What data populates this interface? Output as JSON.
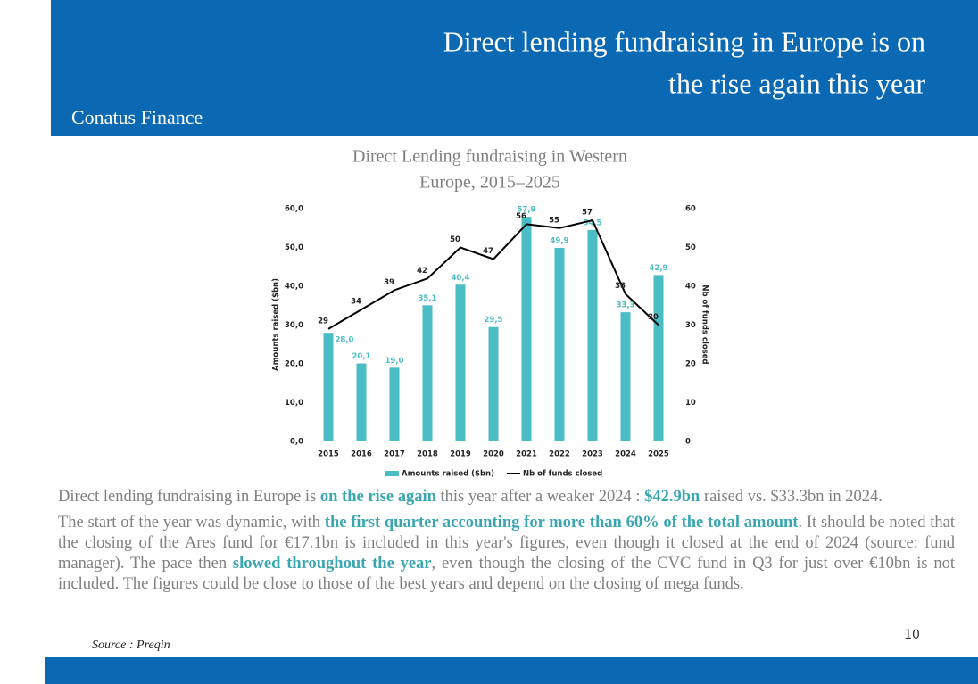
{
  "header": {
    "title_lines": [
      "Direct lending fundraising in Europe is on",
      "the rise again this year"
    ],
    "company": "Conatus Finance"
  },
  "chart_data": {
    "type": "bar_line",
    "title_lines": [
      "Direct Lending fundraising in Western",
      "Europe, 2015–2025"
    ],
    "y_label": "Amounts raised ($bn)",
    "y2_label": "Nb of funds closed",
    "categories": [
      "2015",
      "2016",
      "2017",
      "2018",
      "2019",
      "2020",
      "2021",
      "2022",
      "2023",
      "2024",
      "2025"
    ],
    "series": [
      {
        "name": "Amounts raised ($bn)",
        "type": "bar",
        "color": "#4bbdc4",
        "values": [
          28.0,
          20.1,
          19.0,
          35.1,
          40.4,
          29.5,
          57.9,
          49.9,
          54.5,
          33.3,
          42.9
        ],
        "value_labels": [
          "28,0",
          "20,1",
          "19,0",
          "35,1",
          "40,4",
          "29,5",
          "57,9",
          "49,9",
          "54,5",
          "33,3",
          "42,9"
        ]
      },
      {
        "name": "Nb of funds closed",
        "type": "line",
        "axis": "y2",
        "color": "#000000",
        "values": [
          29,
          34,
          39,
          42,
          50,
          47,
          56,
          55,
          57,
          38,
          30
        ]
      }
    ],
    "ylim": [
      0,
      60
    ],
    "yticks": [
      {
        "value": 0,
        "label": "0,0"
      },
      {
        "value": 10,
        "label": "10,0"
      },
      {
        "value": 20,
        "label": "20,0"
      },
      {
        "value": 30,
        "label": "30,0"
      },
      {
        "value": 40,
        "label": "40,0"
      },
      {
        "value": 50,
        "label": "50,0"
      },
      {
        "value": 60,
        "label": "60,0"
      }
    ],
    "y2lim": [
      0,
      60
    ],
    "y2ticks": [
      0,
      10,
      20,
      30,
      40,
      50,
      60
    ],
    "grid": false,
    "legend": "bottom"
  },
  "body": {
    "paragraphs": [
      {
        "runs": [
          {
            "text": "Direct lending fundraising in Europe is "
          },
          {
            "text": "on the rise again",
            "bold": true
          },
          {
            "text": " this year after a weaker 2024 : "
          },
          {
            "text": "$42.9bn",
            "bold": true
          },
          {
            "text": " raised vs. $33.3bn in 2024."
          }
        ]
      },
      {
        "runs": [
          {
            "text": "The start of the year was dynamic, with "
          },
          {
            "text": "the first quarter accounting for more than 60% of the total amount",
            "bold": true
          },
          {
            "text": ". It should be noted that the closing of the Ares fund for €17.1bn is included in this year's figures, even though it closed at the end of 2024 (source: fund manager). The pace then "
          },
          {
            "text": "slowed throughout the year",
            "bold": true
          },
          {
            "text": ", even though the closing of the CVC fund in Q3 for just over €10bn is not included. The figures could be close to those of the best years and depend on the closing of mega funds."
          }
        ]
      }
    ]
  },
  "source": "Source : Preqin",
  "page_number": "10"
}
